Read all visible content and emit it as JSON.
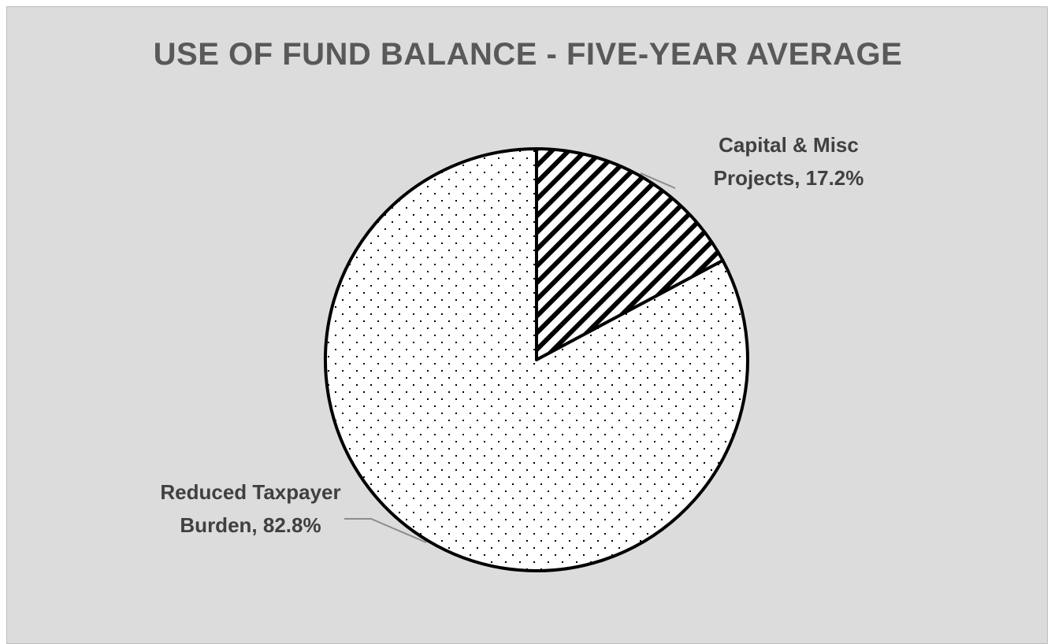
{
  "chart_data": {
    "type": "pie",
    "title": "USE OF FUND BALANCE - FIVE-YEAR AVERAGE",
    "slices": [
      {
        "label_line1": "Capital & Misc",
        "label_line2": "Projects, 17.2%",
        "category": "Capital & Misc Projects",
        "value": 17.2,
        "pattern": "diagonal-hatch"
      },
      {
        "label_line1": "Reduced Taxpayer",
        "label_line2": "Burden, 82.8%",
        "category": "Reduced Taxpayer Burden",
        "value": 82.8,
        "pattern": "dots"
      }
    ],
    "legend": false,
    "colors": {
      "background": "#dcdcdc",
      "slice_fill": "#ffffff",
      "pattern": "#000000",
      "outline": "#000000",
      "leader_line": "#8c8c8c",
      "title": "#595959",
      "labels": "#404040"
    }
  }
}
